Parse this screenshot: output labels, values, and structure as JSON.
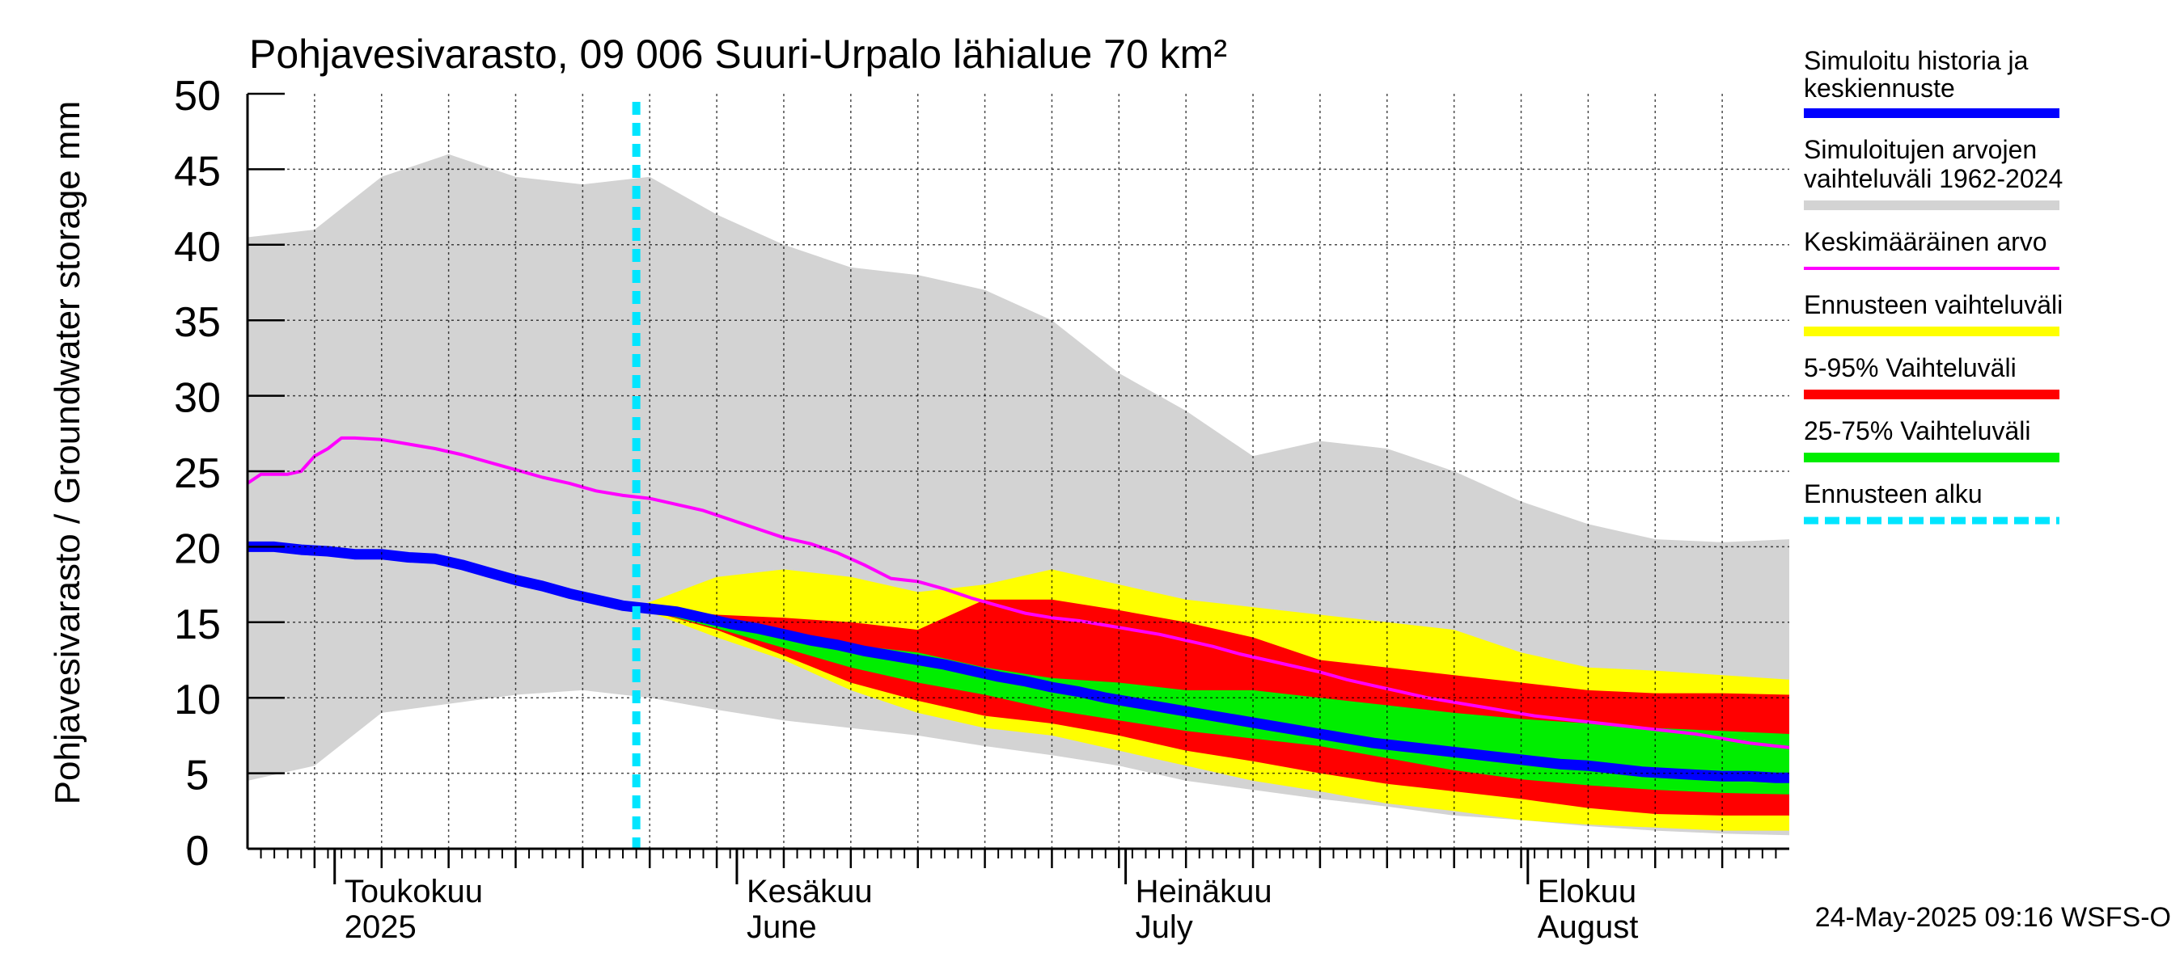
{
  "chart_data": {
    "type": "area",
    "title": "Pohjavesivarasto, 09 006 Suuri-Urpalo lähialue 70 km²",
    "ylabel": "Pohjavesivarasto / Groundwater storage   mm",
    "ylim": [
      0,
      50
    ],
    "yticks": [
      0,
      5,
      10,
      15,
      20,
      25,
      30,
      35,
      40,
      45,
      50
    ],
    "xlim": [
      0,
      115
    ],
    "x_unit": "days since 2025-04-08",
    "month_ticks": [
      {
        "day": 6.5,
        "line1": "Toukokuu",
        "line2": "2025"
      },
      {
        "day": 36.5,
        "line1": "Kesäkuu",
        "line2": "June"
      },
      {
        "day": 65.5,
        "line1": "Heinäkuu",
        "line2": "July"
      },
      {
        "day": 95.5,
        "line1": "Elokuu",
        "line2": "August"
      }
    ],
    "forecast_start_day": 29,
    "timestamp": "24-May-2025 09:16 WSFS-O",
    "grid": true,
    "legend_position": "right",
    "series": [
      {
        "name": "Simuloitujen arvojen vaihteluväli 1962-2024",
        "kind": "band",
        "color": "#d3d3d3",
        "x": [
          0,
          5,
          10,
          15,
          20,
          25,
          30,
          35,
          40,
          45,
          50,
          55,
          60,
          65,
          70,
          75,
          80,
          85,
          90,
          95,
          100,
          105,
          110,
          115
        ],
        "upper": [
          40.5,
          41,
          44.5,
          46,
          44.5,
          44,
          44.5,
          42,
          40,
          38.5,
          38,
          37,
          35,
          31.5,
          29,
          26,
          27,
          26.5,
          25,
          23,
          21.5,
          20.5,
          20.3,
          20.5
        ],
        "lower": [
          4.5,
          5.5,
          9,
          9.6,
          10.2,
          10.5,
          10,
          9.2,
          8.5,
          8,
          7.5,
          6.8,
          6.2,
          5.5,
          4.5,
          3.9,
          3.3,
          2.8,
          2.2,
          1.9,
          1.5,
          1.2,
          1.0,
          0.9
        ]
      },
      {
        "name": "Ennusteen vaihteluväli",
        "kind": "band",
        "color": "#ffff00",
        "x": [
          29,
          35,
          40,
          45,
          50,
          55,
          60,
          65,
          70,
          75,
          80,
          85,
          90,
          95,
          100,
          105,
          110,
          115
        ],
        "upper": [
          16,
          18,
          18.5,
          18,
          17,
          17.5,
          18.5,
          17.5,
          16.5,
          16,
          15.5,
          15,
          14.5,
          13,
          12,
          11.8,
          11.5,
          11.2
        ],
        "lower": [
          16,
          14,
          12.5,
          10.5,
          9,
          8,
          7.5,
          6.5,
          5.5,
          4.5,
          3.8,
          3,
          2.5,
          1.9,
          1.6,
          1.4,
          1.2,
          1.2
        ]
      },
      {
        "name": "5-95% Vaihteluväli",
        "kind": "band",
        "color": "#ff0000",
        "x": [
          29,
          35,
          40,
          45,
          50,
          55,
          60,
          65,
          70,
          75,
          80,
          85,
          90,
          95,
          100,
          105,
          110,
          115
        ],
        "upper": [
          16,
          15.5,
          15.3,
          15,
          14.5,
          16.5,
          16.5,
          15.8,
          15,
          14,
          12.5,
          12,
          11.5,
          11,
          10.5,
          10.3,
          10.3,
          10.2
        ],
        "lower": [
          16,
          14.5,
          12.8,
          11,
          9.8,
          8.8,
          8.3,
          7.5,
          6.5,
          5.8,
          5,
          4.3,
          3.8,
          3.3,
          2.7,
          2.3,
          2.2,
          2.2
        ]
      },
      {
        "name": "25-75% Vaihteluväli",
        "kind": "band",
        "color": "#00ee00",
        "x": [
          29,
          35,
          40,
          45,
          50,
          55,
          60,
          65,
          70,
          75,
          80,
          85,
          90,
          95,
          100,
          105,
          110,
          115
        ],
        "upper": [
          16,
          15.3,
          14.5,
          13.5,
          13,
          12,
          11.3,
          11,
          10.5,
          10.5,
          10,
          9.5,
          9,
          8.6,
          8.3,
          8,
          7.8,
          7.6
        ],
        "lower": [
          16,
          14.6,
          13.3,
          12,
          11,
          10.2,
          9.2,
          8.5,
          7.8,
          7.3,
          6.8,
          6,
          5.2,
          4.6,
          4.2,
          3.9,
          3.7,
          3.6
        ]
      },
      {
        "name": "Keskimääräinen arvo",
        "kind": "line",
        "color": "#ff00ff",
        "x": [
          0,
          1,
          2,
          3,
          4,
          5,
          6,
          7,
          8,
          10,
          12,
          14,
          16,
          18,
          20,
          22,
          24,
          26,
          28,
          30,
          32,
          34,
          36,
          38,
          40,
          42,
          44,
          46,
          48,
          50,
          52,
          54,
          56,
          58,
          60,
          62,
          64,
          66,
          68,
          70,
          72,
          74,
          76,
          78,
          80,
          82,
          84,
          86,
          88,
          90,
          92,
          94,
          96,
          98,
          100,
          102,
          104,
          106,
          108,
          110,
          112,
          114,
          115
        ],
        "y": [
          24.2,
          24.8,
          24.8,
          24.8,
          25,
          26,
          26.5,
          27.2,
          27.2,
          27.1,
          26.8,
          26.5,
          26.1,
          25.6,
          25.1,
          24.6,
          24.2,
          23.7,
          23.4,
          23.2,
          22.8,
          22.4,
          21.8,
          21.2,
          20.6,
          20.2,
          19.6,
          18.8,
          17.9,
          17.7,
          17.2,
          16.6,
          16.1,
          15.6,
          15.3,
          15.1,
          14.8,
          14.5,
          14.2,
          13.8,
          13.4,
          12.9,
          12.5,
          12.1,
          11.7,
          11.2,
          10.8,
          10.4,
          10,
          9.7,
          9.4,
          9.1,
          8.8,
          8.6,
          8.4,
          8.2,
          8,
          7.8,
          7.6,
          7.3,
          7.0,
          6.8,
          6.7
        ]
      },
      {
        "name": "Simuloitu historia ja keskiennuste",
        "kind": "line",
        "color": "#0000ff",
        "x": [
          0,
          2,
          4,
          6,
          8,
          10,
          12,
          14,
          16,
          18,
          20,
          22,
          24,
          26,
          28,
          30,
          32,
          34,
          36,
          38,
          40,
          42,
          44,
          46,
          48,
          50,
          52,
          54,
          56,
          58,
          60,
          62,
          64,
          66,
          68,
          70,
          72,
          74,
          76,
          78,
          80,
          82,
          84,
          86,
          88,
          90,
          92,
          94,
          96,
          98,
          100,
          102,
          104,
          106,
          108,
          110,
          112,
          114,
          115
        ],
        "y": [
          20,
          20,
          19.8,
          19.7,
          19.5,
          19.5,
          19.3,
          19.2,
          18.8,
          18.3,
          17.8,
          17.4,
          16.9,
          16.5,
          16.1,
          15.9,
          15.7,
          15.3,
          14.9,
          14.6,
          14.2,
          13.8,
          13.5,
          13.1,
          12.8,
          12.5,
          12.2,
          11.8,
          11.4,
          11.1,
          10.7,
          10.4,
          10,
          9.7,
          9.4,
          9.1,
          8.8,
          8.5,
          8.2,
          7.9,
          7.6,
          7.3,
          7,
          6.8,
          6.6,
          6.4,
          6.2,
          6,
          5.8,
          5.6,
          5.5,
          5.3,
          5.1,
          5,
          4.9,
          4.8,
          4.8,
          4.7,
          4.7
        ]
      }
    ],
    "legend": [
      {
        "line1": "Simuloitu historia ja",
        "line2": "keskiennuste",
        "color": "#0000ff",
        "style": "thick"
      },
      {
        "line1": "Simuloitujen arvojen",
        "line2": "vaihteluväli 1962-2024",
        "color": "#d3d3d3",
        "style": "thick"
      },
      {
        "line1": "Keskimääräinen arvo",
        "line2": "",
        "color": "#ff00ff",
        "style": "thin"
      },
      {
        "line1": "Ennusteen vaihteluväli",
        "line2": "",
        "color": "#ffff00",
        "style": "thick"
      },
      {
        "line1": "5-95% Vaihteluväli",
        "line2": "",
        "color": "#ff0000",
        "style": "thick"
      },
      {
        "line1": "25-75% Vaihteluväli",
        "line2": "",
        "color": "#00ee00",
        "style": "thick"
      },
      {
        "line1": "Ennusteen alku",
        "line2": "",
        "color": "#00e5ff",
        "style": "dashed"
      }
    ]
  }
}
